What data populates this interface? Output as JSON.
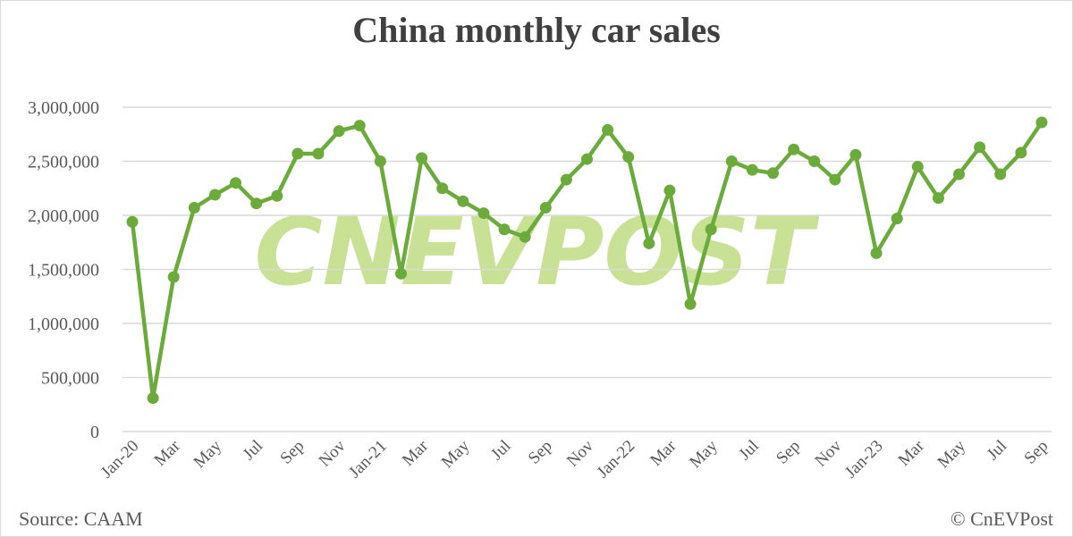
{
  "title": "China monthly car sales",
  "source": "Source: CAAM",
  "copyright": "© CnEVPost",
  "watermark": "CNEVPOST",
  "colors": {
    "line": "#6aab3c",
    "watermark": "#c8e195",
    "gridline": "#d9d9d9",
    "text": "#595959",
    "title": "#404040"
  },
  "chart_data": {
    "type": "line",
    "title": "China monthly car sales",
    "xlabel": "",
    "ylabel": "",
    "ylim": [
      0,
      3000000
    ],
    "yticks": [
      0,
      500000,
      1000000,
      1500000,
      2000000,
      2500000,
      3000000
    ],
    "ytick_labels": [
      "0",
      "500,000",
      "1,000,000",
      "1,500,000",
      "2,000,000",
      "2,500,000",
      "3,000,000"
    ],
    "grid": true,
    "legend": "none",
    "xtick_labels": [
      "Jan-20",
      "Mar",
      "May",
      "Jul",
      "Sep",
      "Nov",
      "Jan-21",
      "Mar",
      "May",
      "Jul",
      "Sep",
      "Nov",
      "Jan-22",
      "Mar",
      "May",
      "Jul",
      "Sep",
      "Nov",
      "Jan-23",
      "Mar",
      "May",
      "Jul",
      "Sep"
    ],
    "categories": [
      "Jan-20",
      "Feb-20",
      "Mar-20",
      "Apr-20",
      "May-20",
      "Jun-20",
      "Jul-20",
      "Aug-20",
      "Sep-20",
      "Oct-20",
      "Nov-20",
      "Dec-20",
      "Jan-21",
      "Feb-21",
      "Mar-21",
      "Apr-21",
      "May-21",
      "Jun-21",
      "Jul-21",
      "Aug-21",
      "Sep-21",
      "Oct-21",
      "Nov-21",
      "Dec-21",
      "Jan-22",
      "Feb-22",
      "Mar-22",
      "Apr-22",
      "May-22",
      "Jun-22",
      "Jul-22",
      "Aug-22",
      "Sep-22",
      "Oct-22",
      "Nov-22",
      "Dec-22",
      "Jan-23",
      "Feb-23",
      "Mar-23",
      "Apr-23",
      "May-23",
      "Jun-23",
      "Jul-23",
      "Aug-23",
      "Sep-23"
    ],
    "series": [
      {
        "name": "Car sales",
        "values": [
          1940000,
          310000,
          1430000,
          2070000,
          2190000,
          2300000,
          2110000,
          2180000,
          2570000,
          2570000,
          2780000,
          2830000,
          2500000,
          1460000,
          2530000,
          2250000,
          2130000,
          2020000,
          1870000,
          1800000,
          2070000,
          2330000,
          2520000,
          2790000,
          2540000,
          1740000,
          2230000,
          1180000,
          1870000,
          2500000,
          2420000,
          2390000,
          2610000,
          2500000,
          2330000,
          2560000,
          1650000,
          1970000,
          2450000,
          2160000,
          2380000,
          2630000,
          2380000,
          2580000,
          2860000
        ]
      }
    ]
  }
}
